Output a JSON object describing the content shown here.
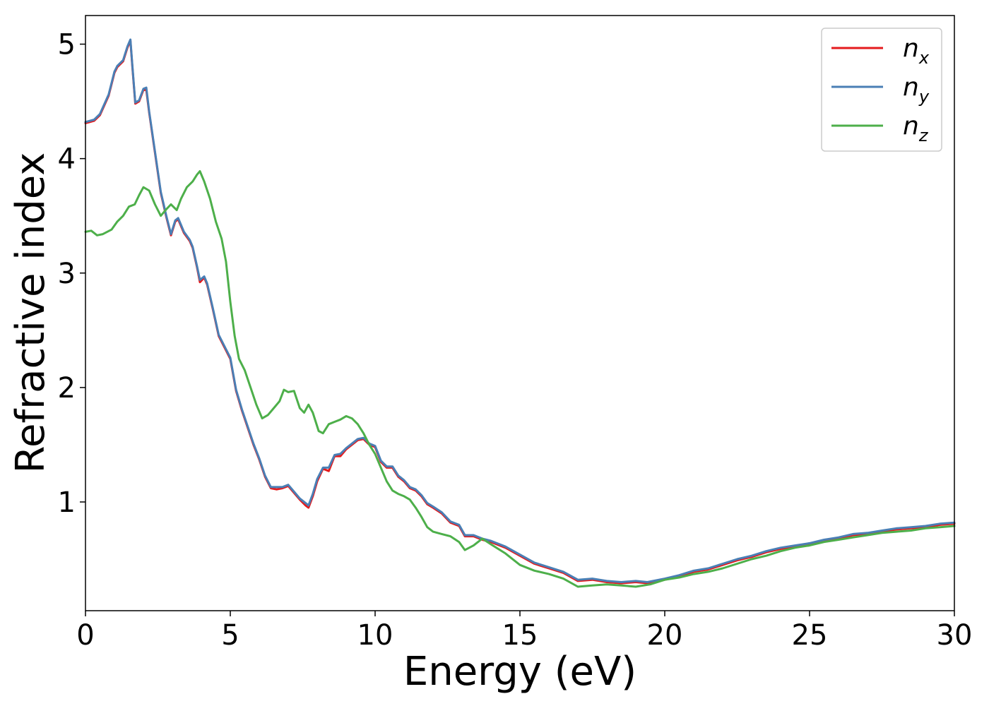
{
  "chart_data": {
    "type": "line",
    "xlabel": "Energy (eV)",
    "ylabel": "Refractive index",
    "xlim": [
      0,
      30
    ],
    "ylim": [
      0.05,
      5.25
    ],
    "xticks": [
      0,
      5,
      10,
      15,
      20,
      25,
      30
    ],
    "yticks": [
      1,
      2,
      3,
      4,
      5
    ],
    "grid": false,
    "legend_position": "top-right",
    "series": [
      {
        "name": "n_x",
        "legend_base": "n",
        "legend_sub": "x",
        "color": "#e41a1c",
        "points": [
          [
            0,
            4.31
          ],
          [
            0.3,
            4.33
          ],
          [
            0.5,
            4.38
          ],
          [
            0.8,
            4.55
          ],
          [
            1.0,
            4.75
          ],
          [
            1.1,
            4.8
          ],
          [
            1.3,
            4.85
          ],
          [
            1.45,
            4.97
          ],
          [
            1.55,
            5.03
          ],
          [
            1.62,
            4.8
          ],
          [
            1.72,
            4.48
          ],
          [
            1.85,
            4.5
          ],
          [
            2.0,
            4.6
          ],
          [
            2.1,
            4.6
          ],
          [
            2.2,
            4.4
          ],
          [
            2.4,
            4.05
          ],
          [
            2.6,
            3.7
          ],
          [
            2.8,
            3.48
          ],
          [
            2.95,
            3.33
          ],
          [
            3.1,
            3.45
          ],
          [
            3.2,
            3.47
          ],
          [
            3.4,
            3.35
          ],
          [
            3.6,
            3.28
          ],
          [
            3.7,
            3.22
          ],
          [
            3.85,
            3.05
          ],
          [
            3.95,
            2.92
          ],
          [
            4.1,
            2.96
          ],
          [
            4.2,
            2.9
          ],
          [
            4.4,
            2.68
          ],
          [
            4.6,
            2.45
          ],
          [
            4.8,
            2.35
          ],
          [
            5.0,
            2.25
          ],
          [
            5.2,
            1.97
          ],
          [
            5.4,
            1.8
          ],
          [
            5.6,
            1.65
          ],
          [
            5.8,
            1.5
          ],
          [
            6.0,
            1.37
          ],
          [
            6.2,
            1.22
          ],
          [
            6.4,
            1.12
          ],
          [
            6.6,
            1.11
          ],
          [
            6.8,
            1.12
          ],
          [
            7.0,
            1.14
          ],
          [
            7.2,
            1.08
          ],
          [
            7.4,
            1.02
          ],
          [
            7.6,
            0.97
          ],
          [
            7.7,
            0.95
          ],
          [
            7.85,
            1.05
          ],
          [
            8.0,
            1.18
          ],
          [
            8.2,
            1.29
          ],
          [
            8.4,
            1.27
          ],
          [
            8.6,
            1.4
          ],
          [
            8.8,
            1.4
          ],
          [
            9.0,
            1.46
          ],
          [
            9.2,
            1.5
          ],
          [
            9.4,
            1.54
          ],
          [
            9.6,
            1.55
          ],
          [
            9.8,
            1.5
          ],
          [
            10.0,
            1.48
          ],
          [
            10.2,
            1.35
          ],
          [
            10.4,
            1.3
          ],
          [
            10.6,
            1.3
          ],
          [
            10.8,
            1.22
          ],
          [
            11.0,
            1.18
          ],
          [
            11.2,
            1.12
          ],
          [
            11.4,
            1.1
          ],
          [
            11.6,
            1.05
          ],
          [
            11.8,
            0.98
          ],
          [
            12.0,
            0.95
          ],
          [
            12.3,
            0.9
          ],
          [
            12.6,
            0.82
          ],
          [
            12.9,
            0.79
          ],
          [
            13.1,
            0.7
          ],
          [
            13.4,
            0.7
          ],
          [
            13.7,
            0.67
          ],
          [
            14.0,
            0.65
          ],
          [
            14.5,
            0.6
          ],
          [
            15.0,
            0.53
          ],
          [
            15.5,
            0.46
          ],
          [
            16.0,
            0.42
          ],
          [
            16.5,
            0.38
          ],
          [
            17.0,
            0.31
          ],
          [
            17.5,
            0.32
          ],
          [
            18.0,
            0.3
          ],
          [
            18.5,
            0.29
          ],
          [
            19.0,
            0.3
          ],
          [
            19.4,
            0.29
          ],
          [
            20.0,
            0.32
          ],
          [
            20.5,
            0.35
          ],
          [
            21.0,
            0.39
          ],
          [
            21.5,
            0.41
          ],
          [
            22.0,
            0.45
          ],
          [
            22.5,
            0.49
          ],
          [
            23.0,
            0.52
          ],
          [
            23.5,
            0.56
          ],
          [
            24.0,
            0.59
          ],
          [
            24.5,
            0.61
          ],
          [
            25.0,
            0.63
          ],
          [
            25.5,
            0.66
          ],
          [
            26.0,
            0.68
          ],
          [
            26.5,
            0.71
          ],
          [
            27.0,
            0.72
          ],
          [
            27.5,
            0.74
          ],
          [
            28.0,
            0.76
          ],
          [
            28.5,
            0.77
          ],
          [
            29.0,
            0.78
          ],
          [
            29.5,
            0.8
          ],
          [
            30.0,
            0.81
          ]
        ]
      },
      {
        "name": "n_y",
        "legend_base": "n",
        "legend_sub": "y",
        "color": "#4a7fb5",
        "points": [
          [
            0,
            4.32
          ],
          [
            0.3,
            4.34
          ],
          [
            0.5,
            4.39
          ],
          [
            0.8,
            4.56
          ],
          [
            1.0,
            4.76
          ],
          [
            1.1,
            4.81
          ],
          [
            1.3,
            4.86
          ],
          [
            1.45,
            4.98
          ],
          [
            1.55,
            5.04
          ],
          [
            1.62,
            4.81
          ],
          [
            1.72,
            4.49
          ],
          [
            1.85,
            4.51
          ],
          [
            2.0,
            4.61
          ],
          [
            2.1,
            4.62
          ],
          [
            2.2,
            4.41
          ],
          [
            2.4,
            4.06
          ],
          [
            2.6,
            3.71
          ],
          [
            2.8,
            3.49
          ],
          [
            2.95,
            3.34
          ],
          [
            3.1,
            3.46
          ],
          [
            3.2,
            3.48
          ],
          [
            3.4,
            3.36
          ],
          [
            3.6,
            3.29
          ],
          [
            3.7,
            3.23
          ],
          [
            3.85,
            3.06
          ],
          [
            3.95,
            2.94
          ],
          [
            4.1,
            2.97
          ],
          [
            4.2,
            2.91
          ],
          [
            4.4,
            2.69
          ],
          [
            4.6,
            2.46
          ],
          [
            4.8,
            2.36
          ],
          [
            5.0,
            2.26
          ],
          [
            5.2,
            1.98
          ],
          [
            5.4,
            1.81
          ],
          [
            5.6,
            1.66
          ],
          [
            5.8,
            1.51
          ],
          [
            6.0,
            1.38
          ],
          [
            6.2,
            1.23
          ],
          [
            6.4,
            1.13
          ],
          [
            6.6,
            1.13
          ],
          [
            6.8,
            1.13
          ],
          [
            7.0,
            1.15
          ],
          [
            7.2,
            1.09
          ],
          [
            7.4,
            1.03
          ],
          [
            7.6,
            0.99
          ],
          [
            7.7,
            0.97
          ],
          [
            7.85,
            1.07
          ],
          [
            8.0,
            1.2
          ],
          [
            8.2,
            1.3
          ],
          [
            8.4,
            1.3
          ],
          [
            8.6,
            1.41
          ],
          [
            8.8,
            1.42
          ],
          [
            9.0,
            1.47
          ],
          [
            9.2,
            1.51
          ],
          [
            9.4,
            1.55
          ],
          [
            9.6,
            1.56
          ],
          [
            9.8,
            1.51
          ],
          [
            10.0,
            1.49
          ],
          [
            10.2,
            1.36
          ],
          [
            10.4,
            1.31
          ],
          [
            10.6,
            1.31
          ],
          [
            10.8,
            1.23
          ],
          [
            11.0,
            1.19
          ],
          [
            11.2,
            1.13
          ],
          [
            11.4,
            1.11
          ],
          [
            11.6,
            1.06
          ],
          [
            11.8,
            0.99
          ],
          [
            12.0,
            0.96
          ],
          [
            12.3,
            0.91
          ],
          [
            12.6,
            0.83
          ],
          [
            12.9,
            0.8
          ],
          [
            13.1,
            0.71
          ],
          [
            13.4,
            0.71
          ],
          [
            13.7,
            0.68
          ],
          [
            14.0,
            0.66
          ],
          [
            14.5,
            0.61
          ],
          [
            15.0,
            0.54
          ],
          [
            15.5,
            0.47
          ],
          [
            16.0,
            0.43
          ],
          [
            16.5,
            0.39
          ],
          [
            17.0,
            0.32
          ],
          [
            17.5,
            0.33
          ],
          [
            18.0,
            0.31
          ],
          [
            18.5,
            0.3
          ],
          [
            19.0,
            0.31
          ],
          [
            19.4,
            0.3
          ],
          [
            20.0,
            0.33
          ],
          [
            20.5,
            0.36
          ],
          [
            21.0,
            0.4
          ],
          [
            21.5,
            0.42
          ],
          [
            22.0,
            0.46
          ],
          [
            22.5,
            0.5
          ],
          [
            23.0,
            0.53
          ],
          [
            23.5,
            0.57
          ],
          [
            24.0,
            0.6
          ],
          [
            24.5,
            0.62
          ],
          [
            25.0,
            0.64
          ],
          [
            25.5,
            0.67
          ],
          [
            26.0,
            0.69
          ],
          [
            26.5,
            0.72
          ],
          [
            27.0,
            0.73
          ],
          [
            27.5,
            0.75
          ],
          [
            28.0,
            0.77
          ],
          [
            28.5,
            0.78
          ],
          [
            29.0,
            0.79
          ],
          [
            29.5,
            0.81
          ],
          [
            30.0,
            0.82
          ]
        ]
      },
      {
        "name": "n_z",
        "legend_base": "n",
        "legend_sub": "z",
        "color": "#4daf4a",
        "points": [
          [
            0,
            3.36
          ],
          [
            0.2,
            3.37
          ],
          [
            0.4,
            3.33
          ],
          [
            0.6,
            3.34
          ],
          [
            0.9,
            3.38
          ],
          [
            1.1,
            3.45
          ],
          [
            1.3,
            3.5
          ],
          [
            1.5,
            3.58
          ],
          [
            1.7,
            3.6
          ],
          [
            1.85,
            3.68
          ],
          [
            2.0,
            3.75
          ],
          [
            2.2,
            3.72
          ],
          [
            2.4,
            3.6
          ],
          [
            2.6,
            3.5
          ],
          [
            2.8,
            3.56
          ],
          [
            2.95,
            3.6
          ],
          [
            3.15,
            3.55
          ],
          [
            3.3,
            3.65
          ],
          [
            3.5,
            3.75
          ],
          [
            3.7,
            3.8
          ],
          [
            3.85,
            3.86
          ],
          [
            3.95,
            3.89
          ],
          [
            4.1,
            3.8
          ],
          [
            4.3,
            3.65
          ],
          [
            4.5,
            3.45
          ],
          [
            4.7,
            3.3
          ],
          [
            4.85,
            3.1
          ],
          [
            5.0,
            2.75
          ],
          [
            5.15,
            2.45
          ],
          [
            5.3,
            2.25
          ],
          [
            5.5,
            2.15
          ],
          [
            5.7,
            2.0
          ],
          [
            5.9,
            1.85
          ],
          [
            6.1,
            1.73
          ],
          [
            6.3,
            1.76
          ],
          [
            6.5,
            1.82
          ],
          [
            6.7,
            1.88
          ],
          [
            6.85,
            1.98
          ],
          [
            7.0,
            1.96
          ],
          [
            7.2,
            1.97
          ],
          [
            7.4,
            1.82
          ],
          [
            7.55,
            1.78
          ],
          [
            7.7,
            1.85
          ],
          [
            7.85,
            1.78
          ],
          [
            8.05,
            1.62
          ],
          [
            8.2,
            1.6
          ],
          [
            8.4,
            1.68
          ],
          [
            8.6,
            1.7
          ],
          [
            8.8,
            1.72
          ],
          [
            9.0,
            1.75
          ],
          [
            9.2,
            1.73
          ],
          [
            9.4,
            1.68
          ],
          [
            9.6,
            1.6
          ],
          [
            9.8,
            1.5
          ],
          [
            10.0,
            1.42
          ],
          [
            10.2,
            1.3
          ],
          [
            10.4,
            1.18
          ],
          [
            10.6,
            1.1
          ],
          [
            10.8,
            1.07
          ],
          [
            11.0,
            1.05
          ],
          [
            11.2,
            1.02
          ],
          [
            11.4,
            0.95
          ],
          [
            11.6,
            0.87
          ],
          [
            11.8,
            0.78
          ],
          [
            12.0,
            0.74
          ],
          [
            12.3,
            0.72
          ],
          [
            12.6,
            0.7
          ],
          [
            12.9,
            0.65
          ],
          [
            13.1,
            0.58
          ],
          [
            13.4,
            0.62
          ],
          [
            13.7,
            0.68
          ],
          [
            14.0,
            0.63
          ],
          [
            14.5,
            0.55
          ],
          [
            15.0,
            0.45
          ],
          [
            15.5,
            0.4
          ],
          [
            16.0,
            0.37
          ],
          [
            16.5,
            0.33
          ],
          [
            17.0,
            0.26
          ],
          [
            17.5,
            0.27
          ],
          [
            18.0,
            0.28
          ],
          [
            18.5,
            0.27
          ],
          [
            19.0,
            0.26
          ],
          [
            19.5,
            0.28
          ],
          [
            20.0,
            0.32
          ],
          [
            20.5,
            0.34
          ],
          [
            21.0,
            0.37
          ],
          [
            21.5,
            0.39
          ],
          [
            22.0,
            0.42
          ],
          [
            22.5,
            0.46
          ],
          [
            23.0,
            0.5
          ],
          [
            23.5,
            0.53
          ],
          [
            24.0,
            0.57
          ],
          [
            24.5,
            0.6
          ],
          [
            25.0,
            0.62
          ],
          [
            25.5,
            0.65
          ],
          [
            26.0,
            0.67
          ],
          [
            26.5,
            0.69
          ],
          [
            27.0,
            0.71
          ],
          [
            27.5,
            0.73
          ],
          [
            28.0,
            0.74
          ],
          [
            28.5,
            0.75
          ],
          [
            29.0,
            0.77
          ],
          [
            29.5,
            0.78
          ],
          [
            30.0,
            0.79
          ]
        ]
      }
    ]
  }
}
